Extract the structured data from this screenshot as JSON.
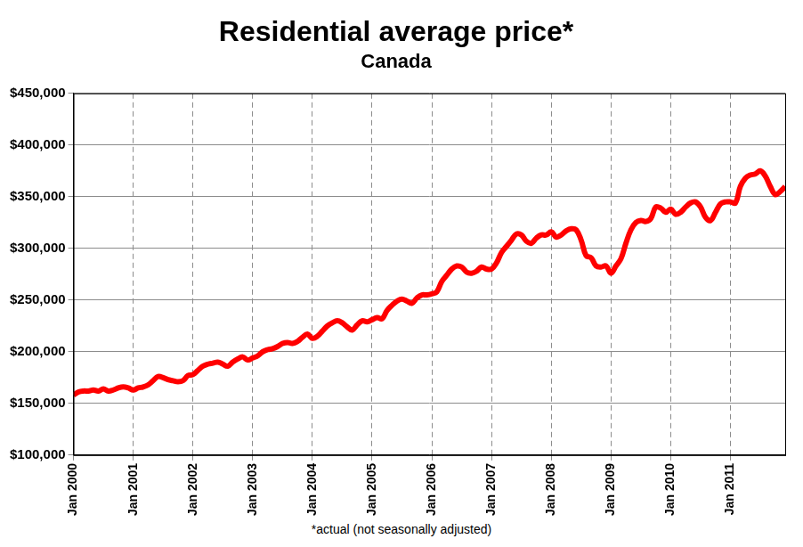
{
  "chart_data": {
    "type": "line",
    "title": "Residential average price*",
    "subtitle": "Canada",
    "footnote": "*actual (not seasonally adjusted)",
    "categories": [
      "Jan 2000",
      null,
      null,
      null,
      null,
      null,
      null,
      null,
      null,
      null,
      null,
      null,
      "Jan 2001",
      null,
      null,
      null,
      null,
      null,
      null,
      null,
      null,
      null,
      null,
      null,
      "Jan 2002",
      null,
      null,
      null,
      null,
      null,
      null,
      null,
      null,
      null,
      null,
      null,
      "Jan 2003",
      null,
      null,
      null,
      null,
      null,
      null,
      null,
      null,
      null,
      null,
      null,
      "Jan 2004",
      null,
      null,
      null,
      null,
      null,
      null,
      null,
      null,
      null,
      null,
      null,
      "Jan 2005",
      null,
      null,
      null,
      null,
      null,
      null,
      null,
      null,
      null,
      null,
      null,
      "Jan 2006",
      null,
      null,
      null,
      null,
      null,
      null,
      null,
      null,
      null,
      null,
      null,
      "Jan 2007",
      null,
      null,
      null,
      null,
      null,
      null,
      null,
      null,
      null,
      null,
      null,
      "Jan 2008",
      null,
      null,
      null,
      null,
      null,
      null,
      null,
      null,
      null,
      null,
      null,
      "Jan 2009",
      null,
      null,
      null,
      null,
      null,
      null,
      null,
      null,
      null,
      null,
      null,
      "Jan 2010",
      null,
      null,
      null,
      null,
      null,
      null,
      null,
      null,
      null,
      null,
      null,
      "Jan 2011",
      null,
      null,
      null,
      null,
      null,
      null,
      null,
      null,
      null,
      null,
      null
    ],
    "values": [
      158000,
      161000,
      162000,
      162000,
      163000,
      162000,
      164000,
      162000,
      163000,
      165000,
      166000,
      165000,
      163000,
      165000,
      166000,
      168000,
      172000,
      176000,
      175000,
      173000,
      172000,
      171000,
      172000,
      177000,
      178000,
      182000,
      186000,
      188000,
      189000,
      190000,
      188000,
      186000,
      190000,
      193000,
      195000,
      192000,
      194000,
      196000,
      200000,
      202000,
      203000,
      205000,
      208000,
      209000,
      208000,
      210000,
      214000,
      217000,
      213000,
      215000,
      220000,
      225000,
      228000,
      230000,
      228000,
      224000,
      221000,
      226000,
      230000,
      229000,
      231000,
      233000,
      232000,
      240000,
      245000,
      249000,
      251000,
      249000,
      247000,
      252000,
      255000,
      255000,
      256000,
      258000,
      268000,
      274000,
      280000,
      283000,
      282000,
      277000,
      276000,
      278000,
      282000,
      280000,
      280000,
      286000,
      296000,
      302000,
      308000,
      314000,
      313000,
      307000,
      305000,
      310000,
      313000,
      313000,
      316000,
      311000,
      313000,
      317000,
      319000,
      318000,
      308000,
      293000,
      291000,
      283000,
      282000,
      283000,
      276000,
      283000,
      290000,
      305000,
      318000,
      325000,
      327000,
      326000,
      329000,
      340000,
      339000,
      335000,
      338000,
      333000,
      335000,
      340000,
      344000,
      345000,
      340000,
      330000,
      327000,
      335000,
      343000,
      345000,
      345000,
      344000,
      360000,
      368000,
      371000,
      372000,
      375000,
      370000,
      360000,
      352000,
      355000,
      360000
    ],
    "color": "#ff0000",
    "ylim": [
      100000,
      450000
    ],
    "yticks": [
      {
        "value": 100000,
        "label": "$100,000"
      },
      {
        "value": 150000,
        "label": "$150,000"
      },
      {
        "value": 200000,
        "label": "$200,000"
      },
      {
        "value": 250000,
        "label": "$250,000"
      },
      {
        "value": 300000,
        "label": "$300,000"
      },
      {
        "value": 350000,
        "label": "$350,000"
      },
      {
        "value": 400000,
        "label": "$400,000"
      },
      {
        "value": 450000,
        "label": "$450,000"
      }
    ],
    "grid": true
  }
}
